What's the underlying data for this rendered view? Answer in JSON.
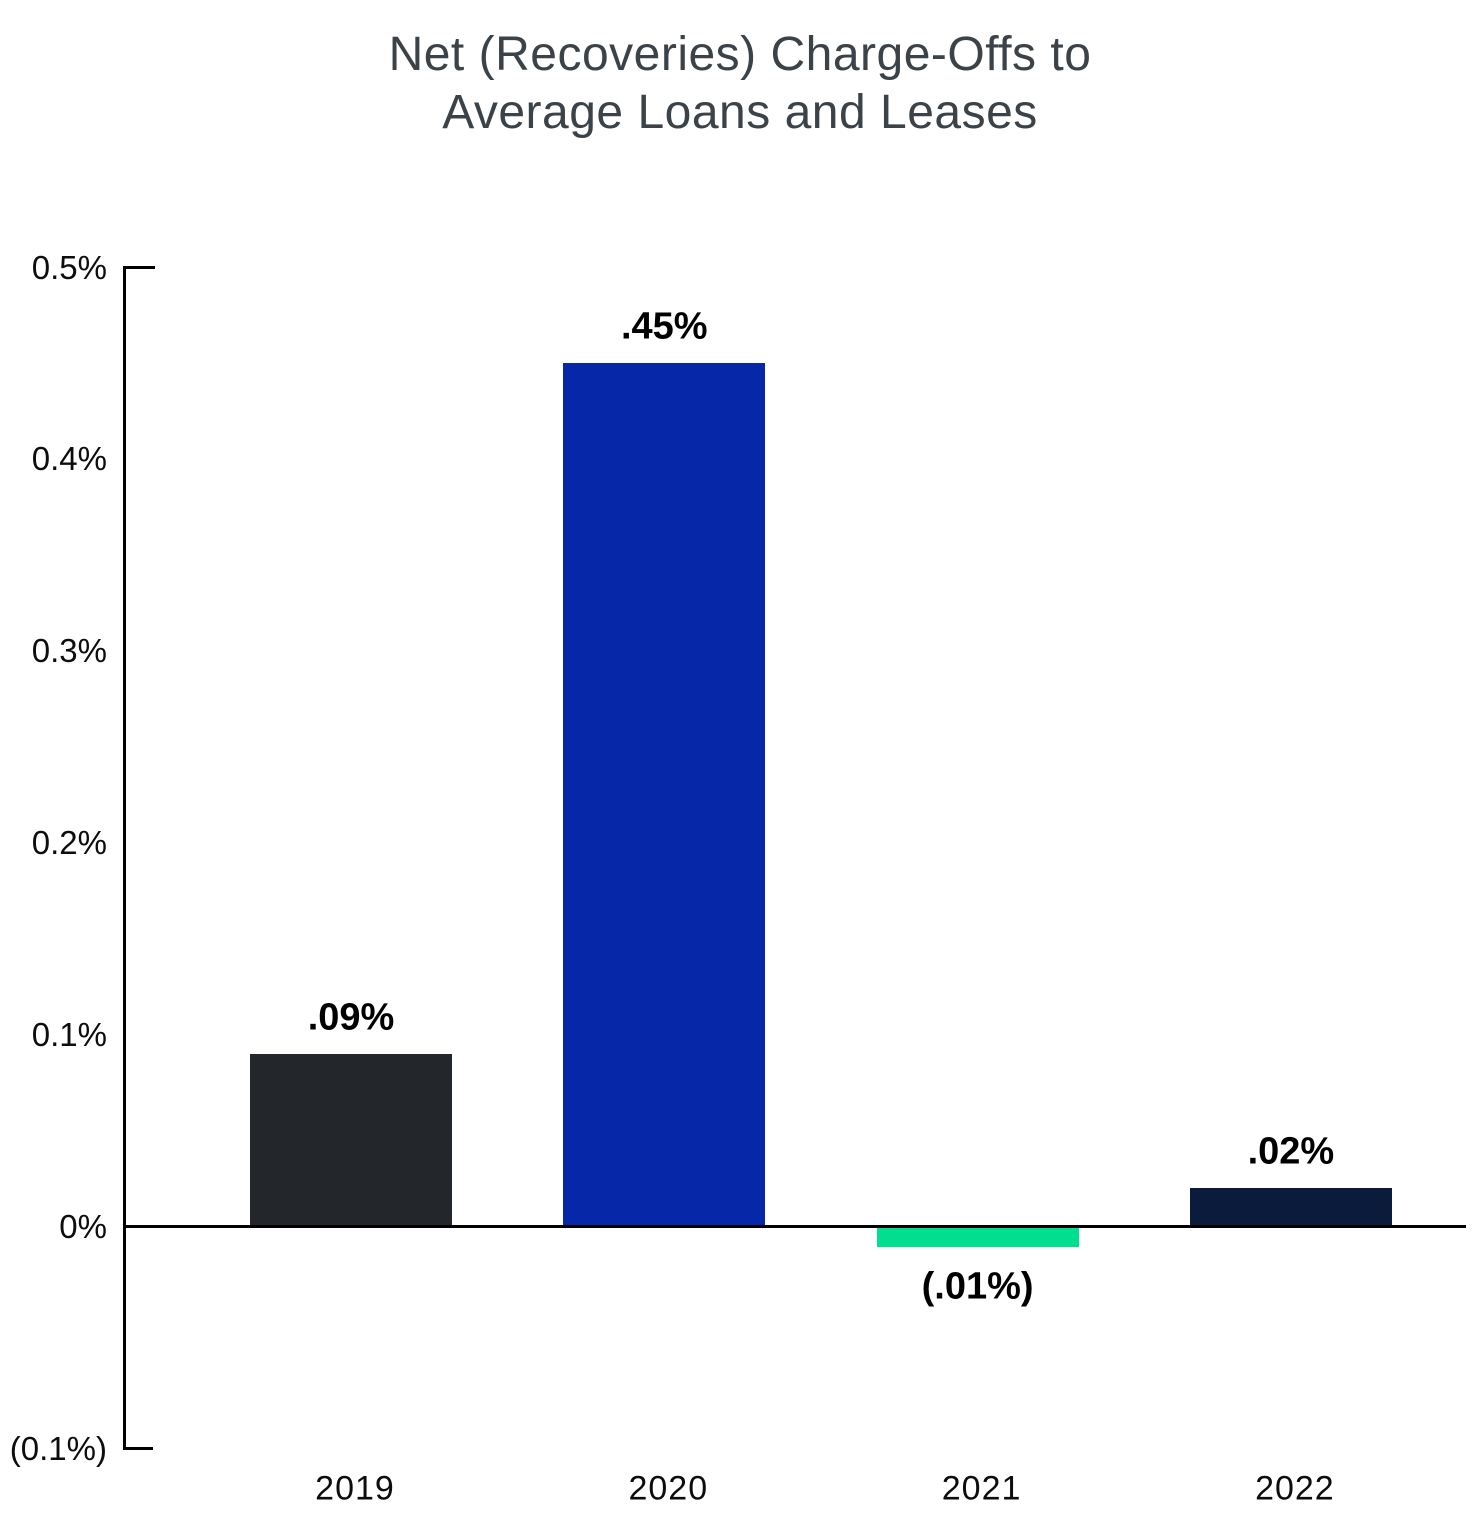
{
  "title": {
    "line1": "Net (Recoveries) Charge-Offs to",
    "line2": "Average Loans and Leases"
  },
  "chart_data": {
    "type": "bar",
    "title": "Net (Recoveries) Charge-Offs to Average Loans and Leases",
    "categories": [
      "2019",
      "2020",
      "2021",
      "2022"
    ],
    "values": [
      0.09,
      0.45,
      -0.01,
      0.02
    ],
    "value_labels": [
      ".09%",
      ".45%",
      "(.01%)",
      ".02%"
    ],
    "bar_colors": [
      "#23272B",
      "#0527A8",
      "#00DE8F",
      "#0A1B3B"
    ],
    "xlabel": "",
    "ylabel": "",
    "ylim": [
      -0.1,
      0.5
    ],
    "yticks": [
      {
        "label": "0.5%",
        "value": 0.5
      },
      {
        "label": "0.4%",
        "value": 0.4
      },
      {
        "label": "0.3%",
        "value": 0.3
      },
      {
        "label": "0.2%",
        "value": 0.2
      },
      {
        "label": "0.1%",
        "value": 0.1
      },
      {
        "label": "0%",
        "value": 0.0
      },
      {
        "label": "(0.1%)",
        "value": -0.1
      }
    ],
    "grid": false,
    "legend": null,
    "axis_color": "#000000",
    "title_color": "#3B4248"
  }
}
